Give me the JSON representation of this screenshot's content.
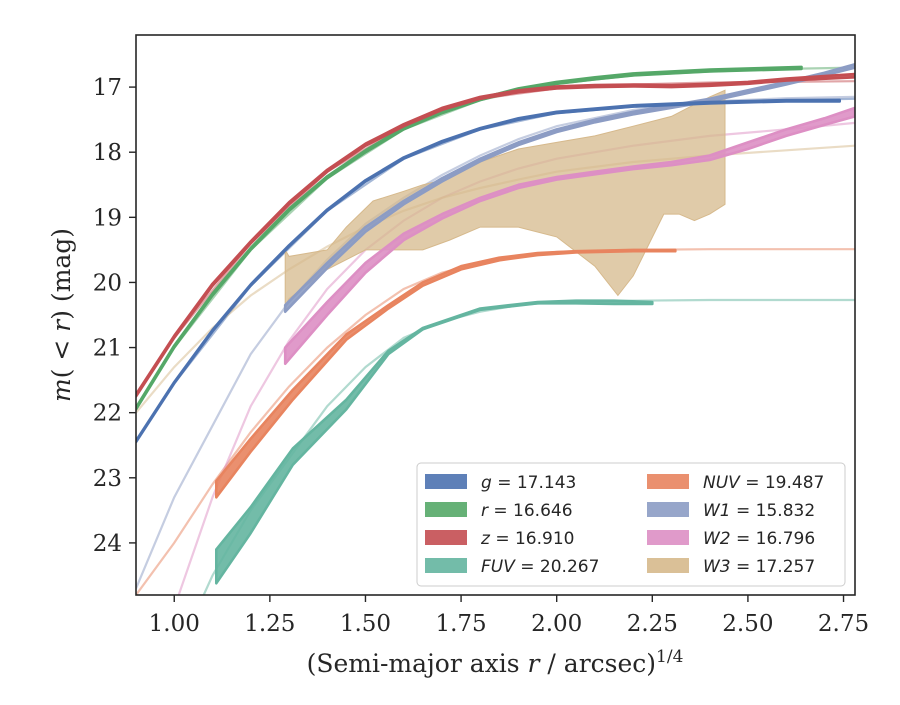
{
  "chart_data": {
    "type": "line",
    "xlabel": "(Semi-major axis r / arcsec)^{1/4}",
    "ylabel": "m(< r) (mag)",
    "xlim": [
      0.9,
      2.78
    ],
    "ylim": [
      24.8,
      16.2
    ],
    "y_inverted": true,
    "xticks": [
      "1.00",
      "1.25",
      "1.50",
      "1.75",
      "2.00",
      "2.25",
      "2.50",
      "2.75"
    ],
    "xtick_values": [
      1.0,
      1.25,
      1.5,
      1.75,
      2.0,
      2.25,
      2.5,
      2.75
    ],
    "yticks": [
      "17",
      "18",
      "19",
      "20",
      "21",
      "22",
      "23",
      "24"
    ],
    "ytick_values": [
      17,
      18,
      19,
      20,
      21,
      22,
      23,
      24
    ],
    "grid": false,
    "legend_position": "lower-right",
    "legend_columns": 2,
    "series": [
      {
        "name": "g = 17.143",
        "name_prefix": "g",
        "name_value": "17.143",
        "color": "#4c72b0",
        "obs_x": [
          0.9,
          1.0,
          1.1,
          1.2,
          1.3,
          1.4,
          1.5,
          1.6,
          1.7,
          1.8,
          1.9,
          2.0,
          2.2,
          2.4,
          2.6,
          2.74
        ],
        "obs_y": [
          22.45,
          21.55,
          20.75,
          20.05,
          19.45,
          18.9,
          18.45,
          18.1,
          17.85,
          17.65,
          17.5,
          17.4,
          17.3,
          17.25,
          17.22,
          17.22
        ],
        "obs_y_lo": [
          22.43,
          21.53,
          20.73,
          20.03,
          19.43,
          18.88,
          18.43,
          18.08,
          17.83,
          17.63,
          17.48,
          17.38,
          17.28,
          17.23,
          17.2,
          17.2
        ],
        "model_x": [
          0.9,
          2.78
        ],
        "model_y": [
          22.45,
          17.15
        ],
        "model_x_full": [
          0.9,
          1.0,
          1.2,
          1.4,
          1.6,
          1.8,
          2.0,
          2.2,
          2.4,
          2.6,
          2.78
        ],
        "model_y_full": [
          22.45,
          21.55,
          20.05,
          18.9,
          18.1,
          17.65,
          17.4,
          17.3,
          17.25,
          17.2,
          17.18
        ]
      },
      {
        "name": "r = 16.646",
        "name_prefix": "r",
        "name_value": "16.646",
        "color": "#55a868",
        "obs_x": [
          0.9,
          1.0,
          1.1,
          1.2,
          1.3,
          1.4,
          1.5,
          1.6,
          1.7,
          1.8,
          1.9,
          2.0,
          2.1,
          2.2,
          2.4,
          2.64
        ],
        "obs_y": [
          21.95,
          21.0,
          20.2,
          19.5,
          18.9,
          18.4,
          18.0,
          17.65,
          17.4,
          17.2,
          17.05,
          16.95,
          16.88,
          16.82,
          16.76,
          16.72
        ],
        "obs_y_lo": [
          21.92,
          20.97,
          20.17,
          19.47,
          18.87,
          18.37,
          17.97,
          17.62,
          17.37,
          17.17,
          17.02,
          16.92,
          16.85,
          16.79,
          16.73,
          16.69
        ],
        "model_x_full": [
          0.9,
          1.0,
          1.2,
          1.4,
          1.6,
          1.8,
          2.0,
          2.2,
          2.4,
          2.6,
          2.78
        ],
        "model_y_full": [
          21.95,
          21.0,
          19.5,
          18.4,
          17.65,
          17.2,
          16.95,
          16.82,
          16.76,
          16.72,
          16.7
        ]
      },
      {
        "name": "z = 16.910",
        "name_prefix": "z",
        "name_value": "16.910",
        "color": "#c44e52",
        "obs_x": [
          0.9,
          1.0,
          1.1,
          1.2,
          1.3,
          1.4,
          1.5,
          1.6,
          1.7,
          1.8,
          1.9,
          2.0,
          2.1,
          2.2,
          2.3,
          2.4,
          2.5,
          2.6,
          2.78
        ],
        "obs_y": [
          21.75,
          20.85,
          20.05,
          19.4,
          18.8,
          18.3,
          17.9,
          17.6,
          17.35,
          17.18,
          17.08,
          17.02,
          17.0,
          16.99,
          17.0,
          16.98,
          16.95,
          16.9,
          16.85
        ],
        "obs_y_lo": [
          21.72,
          20.82,
          20.02,
          19.37,
          18.77,
          18.27,
          17.87,
          17.57,
          17.32,
          17.15,
          17.05,
          16.99,
          16.97,
          16.96,
          16.97,
          16.95,
          16.92,
          16.87,
          16.8
        ],
        "model_x_full": [
          0.9,
          1.0,
          1.2,
          1.4,
          1.6,
          1.8,
          2.0,
          2.2,
          2.4,
          2.6,
          2.78
        ],
        "model_y_full": [
          21.75,
          20.85,
          19.4,
          18.3,
          17.6,
          17.18,
          17.02,
          16.96,
          16.93,
          16.92,
          16.91
        ]
      },
      {
        "name": "FUV = 20.267",
        "name_prefix": "FUV",
        "name_value": "20.267",
        "color": "#64b5a0",
        "obs_x": [
          1.11,
          1.2,
          1.31,
          1.45,
          1.56,
          1.65,
          1.8,
          1.95,
          2.05,
          2.15,
          2.25
        ],
        "obs_y": [
          24.1,
          23.45,
          22.55,
          21.8,
          21.05,
          20.7,
          20.4,
          20.3,
          20.28,
          20.28,
          20.3
        ],
        "obs_y_lo": [
          24.62,
          23.85,
          22.8,
          21.95,
          21.1,
          20.72,
          20.42,
          20.32,
          20.32,
          20.33,
          20.33
        ],
        "model_x_full": [
          0.9,
          1.0,
          1.1,
          1.2,
          1.3,
          1.4,
          1.5,
          1.6,
          1.7,
          1.8,
          1.9,
          2.0,
          2.2,
          2.4,
          2.6,
          2.78
        ],
        "model_y_full": [
          27.0,
          25.8,
          24.5,
          23.5,
          22.7,
          21.9,
          21.3,
          20.85,
          20.6,
          20.45,
          20.35,
          20.3,
          20.28,
          20.27,
          20.27,
          20.27
        ]
      },
      {
        "name": "NUV = 19.487",
        "name_prefix": "NUV",
        "name_value": "19.487",
        "color": "#e8845f",
        "obs_x": [
          1.11,
          1.2,
          1.31,
          1.45,
          1.56,
          1.65,
          1.75,
          1.85,
          1.95,
          2.05,
          2.2,
          2.31
        ],
        "obs_y": [
          23.05,
          22.4,
          21.65,
          20.8,
          20.35,
          20.0,
          19.75,
          19.62,
          19.55,
          19.52,
          19.5,
          19.5
        ],
        "obs_y_lo": [
          23.3,
          22.6,
          21.8,
          20.88,
          20.4,
          20.05,
          19.8,
          19.66,
          19.58,
          19.54,
          19.52,
          19.52
        ],
        "model_x_full": [
          0.9,
          1.0,
          1.1,
          1.2,
          1.3,
          1.4,
          1.5,
          1.6,
          1.7,
          1.8,
          1.9,
          2.0,
          2.2,
          2.4,
          2.6,
          2.78
        ],
        "model_y_full": [
          24.8,
          24.0,
          23.1,
          22.3,
          21.6,
          21.0,
          20.5,
          20.1,
          19.85,
          19.7,
          19.6,
          19.53,
          19.5,
          19.49,
          19.49,
          19.49
        ]
      },
      {
        "name": "W1 = 15.832",
        "name_prefix": "W1",
        "name_value": "15.832",
        "color": "#8c9cc4",
        "obs_x": [
          1.29,
          1.4,
          1.5,
          1.6,
          1.7,
          1.8,
          1.9,
          2.0,
          2.1,
          2.2,
          2.3,
          2.4,
          2.5,
          2.6,
          2.7,
          2.78
        ],
        "obs_y": [
          20.35,
          19.7,
          19.15,
          18.75,
          18.4,
          18.1,
          17.85,
          17.65,
          17.5,
          17.38,
          17.28,
          17.18,
          17.05,
          16.92,
          16.78,
          16.65
        ],
        "obs_y_lo": [
          20.45,
          19.78,
          19.22,
          18.8,
          18.45,
          18.14,
          17.89,
          17.69,
          17.54,
          17.42,
          17.32,
          17.22,
          17.09,
          16.96,
          16.82,
          16.7
        ],
        "model_x_full": [
          0.9,
          1.0,
          1.1,
          1.2,
          1.3,
          1.4,
          1.5,
          1.6,
          1.7,
          1.8,
          1.9,
          2.0,
          2.2,
          2.4,
          2.6,
          2.78
        ],
        "model_y_full": [
          24.7,
          23.3,
          22.2,
          21.1,
          20.3,
          19.65,
          19.1,
          18.7,
          18.35,
          18.05,
          17.8,
          17.6,
          17.35,
          17.22,
          17.17,
          17.15
        ]
      },
      {
        "name": "W2 = 16.796",
        "name_prefix": "W2",
        "name_value": "16.796",
        "color": "#dd8fc4",
        "obs_x": [
          1.29,
          1.4,
          1.5,
          1.6,
          1.7,
          1.8,
          1.9,
          2.0,
          2.1,
          2.2,
          2.3,
          2.4,
          2.5,
          2.6,
          2.7,
          2.78
        ],
        "obs_y": [
          21.0,
          20.3,
          19.7,
          19.25,
          18.95,
          18.7,
          18.5,
          18.38,
          18.3,
          18.22,
          18.15,
          18.05,
          17.85,
          17.65,
          17.48,
          17.32
        ],
        "obs_y_lo": [
          21.25,
          20.5,
          19.85,
          19.35,
          19.02,
          18.75,
          18.55,
          18.42,
          18.34,
          18.26,
          18.2,
          18.12,
          17.95,
          17.75,
          17.58,
          17.45
        ],
        "model_x_full": [
          0.9,
          1.0,
          1.1,
          1.2,
          1.3,
          1.4,
          1.5,
          1.6,
          1.7,
          1.8,
          1.9,
          2.0,
          2.2,
          2.4,
          2.6,
          2.78
        ],
        "model_y_full": [
          27.0,
          25.0,
          23.3,
          21.9,
          20.9,
          20.1,
          19.5,
          19.05,
          18.7,
          18.45,
          18.25,
          18.1,
          17.9,
          17.75,
          17.65,
          17.55
        ]
      },
      {
        "name": "W3 = 17.257",
        "name_prefix": "W3",
        "name_value": "17.257",
        "color": "#d6b98c",
        "band_x": [
          1.29,
          1.3,
          1.4,
          1.45,
          1.52,
          1.6,
          1.65,
          1.72,
          1.8,
          1.9,
          2.0,
          2.1,
          2.2,
          2.3,
          2.35,
          2.4,
          2.44,
          2.44,
          2.4,
          2.36,
          2.32,
          2.28,
          2.2,
          2.16,
          2.1,
          2.0,
          1.9,
          1.8,
          1.72,
          1.65,
          1.6,
          1.5,
          1.4,
          1.3,
          1.29
        ],
        "band_y": [
          19.5,
          19.6,
          19.5,
          19.15,
          18.75,
          18.6,
          18.5,
          18.4,
          18.15,
          17.95,
          17.85,
          17.75,
          17.6,
          17.45,
          17.3,
          17.15,
          17.05,
          18.8,
          18.95,
          19.05,
          18.95,
          18.95,
          19.9,
          20.2,
          19.75,
          19.3,
          19.15,
          19.15,
          19.35,
          19.5,
          19.5,
          19.5,
          19.8,
          20.25,
          20.35
        ],
        "model_x_full": [
          0.9,
          1.0,
          1.1,
          1.2,
          1.3,
          1.4,
          1.5,
          1.6,
          1.7,
          1.8,
          1.9,
          2.0,
          2.2,
          2.4,
          2.6,
          2.78
        ],
        "model_y_full": [
          22.0,
          21.3,
          20.7,
          20.2,
          19.8,
          19.45,
          19.15,
          18.9,
          18.7,
          18.55,
          18.42,
          18.3,
          18.15,
          18.05,
          17.97,
          17.9
        ]
      }
    ]
  }
}
